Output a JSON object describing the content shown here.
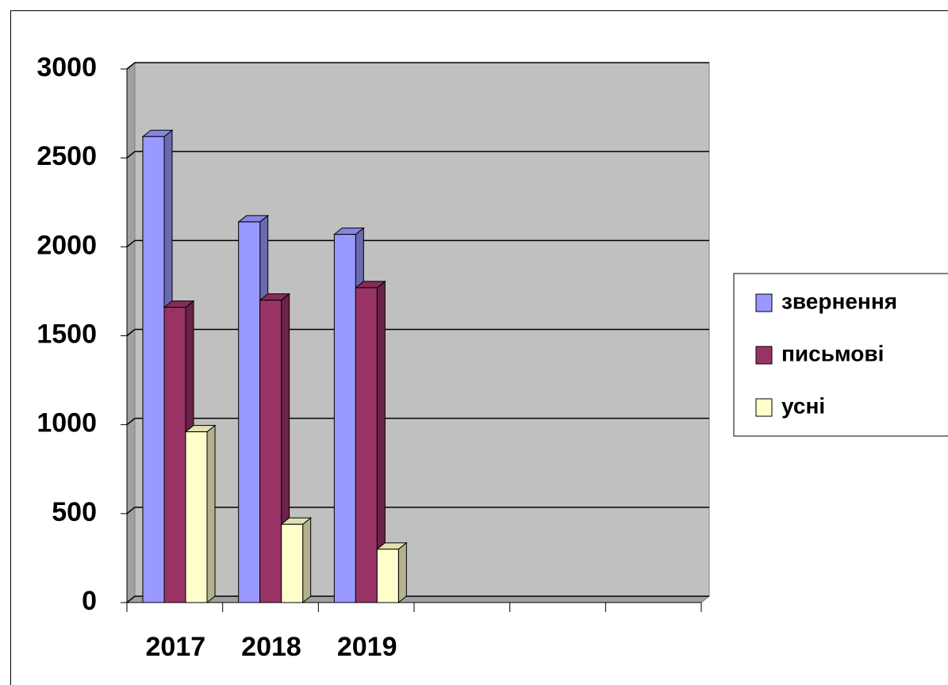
{
  "chart_data": {
    "type": "bar3d",
    "categories": [
      "2017",
      "2018",
      "2019",
      null,
      null,
      null
    ],
    "series": [
      {
        "name": "звернення",
        "color": "#9999ff",
        "values": [
          2620,
          2140,
          2070,
          null,
          null,
          null
        ]
      },
      {
        "name": "письмові",
        "color": "#993366",
        "values": [
          1660,
          1700,
          1770,
          null,
          null,
          null
        ]
      },
      {
        "name": "усні",
        "color": "#ffffcc",
        "values": [
          960,
          440,
          300,
          null,
          null,
          null
        ]
      }
    ],
    "ylim": [
      0,
      3000
    ],
    "yticks": [
      0,
      500,
      1000,
      1500,
      2000,
      2500,
      3000
    ],
    "grid": true,
    "legend": "right"
  }
}
